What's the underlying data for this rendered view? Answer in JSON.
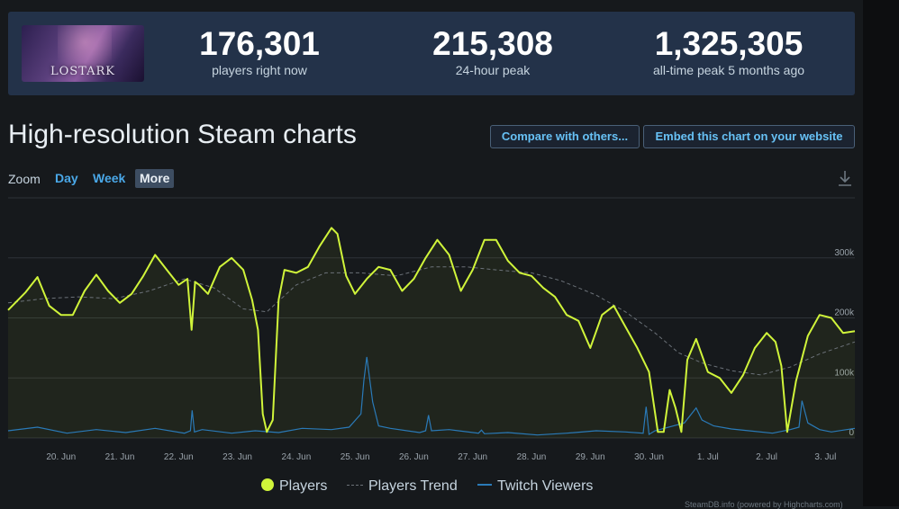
{
  "game": {
    "logo_text": "LOSTARK"
  },
  "stats": [
    {
      "value": "176,301",
      "label": "players right now"
    },
    {
      "value": "215,308",
      "label": "24-hour peak"
    },
    {
      "value": "1,325,305",
      "label": "all-time peak 5 months ago"
    }
  ],
  "page": {
    "title": "High-resolution Steam charts",
    "compare_button": "Compare with others...",
    "embed_button": "Embed this chart on your website"
  },
  "zoom": {
    "label": "Zoom",
    "options": [
      "Day",
      "Week",
      "More"
    ],
    "selected": "More"
  },
  "footer": {
    "credit": "SteamDB.info (powered by Highcharts.com)"
  },
  "chart_data": {
    "type": "line",
    "x_labels": [
      "20. Jun",
      "21. Jun",
      "22. Jun",
      "23. Jun",
      "24. Jun",
      "25. Jun",
      "26. Jun",
      "27. Jun",
      "28. Jun",
      "29. Jun",
      "30. Jun",
      "1. Jul",
      "2. Jul",
      "3. Jul"
    ],
    "y_ticks": [
      "0",
      "100k",
      "200k",
      "300k"
    ],
    "ylim": [
      0,
      400000
    ],
    "grid": true,
    "legend_position": "bottom",
    "colors": {
      "players": "#d0f43a",
      "trend": "#6b7178",
      "twitch": "#2a7ab8"
    },
    "series": [
      {
        "name": "Players",
        "x": [
          19.0,
          19.3,
          19.5,
          19.7,
          19.9,
          20.1,
          20.3,
          20.5,
          20.7,
          20.9,
          21.1,
          21.3,
          21.5,
          21.7,
          21.9,
          22.05,
          22.12,
          22.18,
          22.25,
          22.4,
          22.6,
          22.8,
          23.0,
          23.15,
          23.25,
          23.33,
          23.4,
          23.5,
          23.6,
          23.7,
          23.9,
          24.1,
          24.3,
          24.5,
          24.6,
          24.75,
          24.9,
          25.1,
          25.3,
          25.5,
          25.7,
          25.9,
          26.1,
          26.3,
          26.5,
          26.7,
          26.9,
          27.1,
          27.3,
          27.5,
          27.7,
          27.9,
          28.1,
          28.3,
          28.5,
          28.7,
          28.9,
          29.1,
          29.3,
          29.5,
          29.7,
          29.9,
          30.05,
          30.15,
          30.25,
          30.35,
          30.45,
          30.55,
          30.7,
          30.9,
          31.1,
          31.3,
          31.5,
          31.7,
          31.9,
          32.05,
          32.15,
          32.25,
          32.4,
          32.6,
          32.8,
          33.0,
          33.2,
          33.4
        ],
        "values": [
          213000,
          243000,
          268000,
          220000,
          205000,
          205000,
          245000,
          272000,
          245000,
          225000,
          240000,
          270000,
          305000,
          280000,
          255000,
          265000,
          180000,
          260000,
          255000,
          240000,
          285000,
          300000,
          280000,
          230000,
          180000,
          40000,
          10000,
          30000,
          230000,
          280000,
          275000,
          285000,
          320000,
          350000,
          340000,
          270000,
          240000,
          265000,
          285000,
          280000,
          245000,
          265000,
          300000,
          330000,
          305000,
          245000,
          280000,
          330000,
          330000,
          295000,
          275000,
          270000,
          250000,
          235000,
          205000,
          195000,
          150000,
          205000,
          220000,
          185000,
          150000,
          110000,
          10000,
          10000,
          80000,
          50000,
          10000,
          130000,
          165000,
          110000,
          100000,
          75000,
          105000,
          150000,
          175000,
          160000,
          120000,
          10000,
          95000,
          170000,
          205000,
          200000,
          175000,
          178000
        ]
      },
      {
        "name": "Players Trend",
        "x": [
          19.0,
          19.6,
          20.2,
          20.8,
          21.4,
          22.0,
          22.5,
          23.0,
          23.4,
          23.9,
          24.4,
          25.0,
          25.6,
          26.2,
          26.8,
          27.3,
          27.9,
          28.4,
          29.0,
          29.5,
          30.0,
          30.4,
          30.8,
          31.3,
          31.8,
          32.3,
          32.8,
          33.4
        ],
        "values": [
          225000,
          232000,
          235000,
          232000,
          245000,
          265000,
          250000,
          215000,
          210000,
          255000,
          275000,
          275000,
          270000,
          285000,
          285000,
          280000,
          275000,
          262000,
          238000,
          210000,
          175000,
          142000,
          125000,
          112000,
          105000,
          118000,
          140000,
          160000
        ]
      },
      {
        "name": "Twitch Viewers",
        "x": [
          19.0,
          19.5,
          20.0,
          20.5,
          21.0,
          21.5,
          22.0,
          22.1,
          22.13,
          22.17,
          22.3,
          22.8,
          23.2,
          23.6,
          24.0,
          24.5,
          24.8,
          25.0,
          25.05,
          25.1,
          25.2,
          25.3,
          25.5,
          26.0,
          26.1,
          26.15,
          26.2,
          26.5,
          27.0,
          27.05,
          27.1,
          27.5,
          28.0,
          28.5,
          29.0,
          29.5,
          29.8,
          29.85,
          29.9,
          30.0,
          30.5,
          30.7,
          30.8,
          31.0,
          31.3,
          31.6,
          32.0,
          32.3,
          32.45,
          32.5,
          32.6,
          32.8,
          33.0,
          33.4
        ],
        "values": [
          12000,
          18000,
          8000,
          14000,
          9000,
          16000,
          8000,
          12000,
          46000,
          10000,
          14000,
          8000,
          12000,
          9000,
          16000,
          14000,
          18000,
          40000,
          95000,
          135000,
          60000,
          20000,
          16000,
          9000,
          12000,
          38000,
          12000,
          14000,
          8000,
          13000,
          7000,
          9000,
          5000,
          8000,
          12000,
          10000,
          8000,
          52000,
          6000,
          12000,
          25000,
          50000,
          30000,
          20000,
          15000,
          12000,
          8000,
          14000,
          18000,
          62000,
          25000,
          14000,
          10000,
          16000
        ]
      }
    ]
  }
}
